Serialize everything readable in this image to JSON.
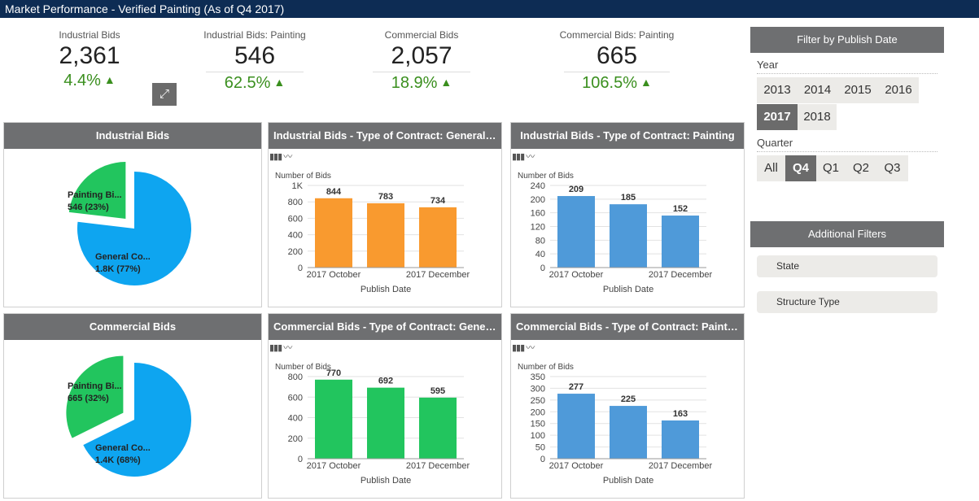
{
  "title": "Market Performance - Verified Painting (As of Q4 2017)",
  "kpis": [
    {
      "label": "Industrial Bids",
      "value": "2,361",
      "change": "4.4%"
    },
    {
      "label": "Industrial Bids: Painting",
      "value": "546",
      "change": "62.5%"
    },
    {
      "label": "Commercial Bids",
      "value": "2,057",
      "change": "18.9%"
    },
    {
      "label": "Commercial Bids: Painting",
      "value": "665",
      "change": "106.5%"
    }
  ],
  "expand_icon": "expand-icon",
  "chart_type_icons": [
    "bar-chart-icon",
    "line-chart-icon"
  ],
  "chart_data": [
    {
      "type": "pie",
      "title": "Industrial Bids",
      "slices": [
        {
          "label": "Painting Bi...",
          "value_label": "546 (23%)",
          "value": 546,
          "percent": 23,
          "color": "#22c55e"
        },
        {
          "label": "General Co...",
          "value_label": "1.8K (77%)",
          "value": 1815,
          "percent": 77,
          "color": "#0ea5f0"
        }
      ]
    },
    {
      "type": "bar",
      "title": "Industrial Bids - Type of Contract: General Cons...",
      "ylabel": "Number of Bids",
      "xlabel": "Publish Date",
      "categories": [
        "2017 October",
        "",
        "2017 December"
      ],
      "values": [
        844,
        783,
        734
      ],
      "ylim": [
        0,
        1000
      ],
      "yticks": [
        "0",
        "200",
        "400",
        "600",
        "800",
        "1K"
      ],
      "ytick_values": [
        0,
        200,
        400,
        600,
        800,
        1000
      ],
      "color": "#f99a2f"
    },
    {
      "type": "bar",
      "title": "Industrial Bids - Type of Contract: Painting",
      "ylabel": "Number of Bids",
      "xlabel": "Publish Date",
      "categories": [
        "2017 October",
        "",
        "2017 December"
      ],
      "values": [
        209,
        185,
        152
      ],
      "ylim": [
        0,
        240
      ],
      "yticks": [
        "0",
        "40",
        "80",
        "120",
        "160",
        "200",
        "240"
      ],
      "ytick_values": [
        0,
        40,
        80,
        120,
        160,
        200,
        240
      ],
      "color": "#4f9ad9"
    },
    {
      "type": "pie",
      "title": "Commercial Bids",
      "slices": [
        {
          "label": "Painting Bi...",
          "value_label": "665 (32%)",
          "value": 665,
          "percent": 32,
          "color": "#22c55e"
        },
        {
          "label": "General Co...",
          "value_label": "1.4K (68%)",
          "value": 1392,
          "percent": 68,
          "color": "#0ea5f0"
        }
      ]
    },
    {
      "type": "bar",
      "title": "Commercial Bids - Type of Contract: General C...",
      "ylabel": "Number of Bids",
      "xlabel": "Publish Date",
      "categories": [
        "2017 October",
        "",
        "2017 December"
      ],
      "values": [
        770,
        692,
        595
      ],
      "ylim": [
        0,
        800
      ],
      "yticks": [
        "0",
        "200",
        "400",
        "600",
        "800"
      ],
      "ytick_values": [
        0,
        200,
        400,
        600,
        800
      ],
      "color": "#22c55e"
    },
    {
      "type": "bar",
      "title": "Commercial Bids - Type of Contract: Painting",
      "ylabel": "Number of Bids",
      "xlabel": "Publish Date",
      "categories": [
        "2017 October",
        "",
        "2017 December"
      ],
      "values": [
        277,
        225,
        163
      ],
      "ylim": [
        0,
        350
      ],
      "yticks": [
        "0",
        "50",
        "100",
        "150",
        "200",
        "250",
        "300",
        "350"
      ],
      "ytick_values": [
        0,
        50,
        100,
        150,
        200,
        250,
        300,
        350
      ],
      "color": "#4f9ad9"
    }
  ],
  "filters": {
    "publish_title": "Filter by Publish Date",
    "year_label": "Year",
    "years": [
      "2013",
      "2014",
      "2015",
      "2016",
      "2017",
      "2018"
    ],
    "selected_year": "2017",
    "quarter_label": "Quarter",
    "quarters": [
      "All",
      "Q4",
      "Q1",
      "Q2",
      "Q3"
    ],
    "selected_quarter": "Q4",
    "additional_title": "Additional Filters",
    "additional": [
      "State",
      "Structure Type"
    ]
  }
}
